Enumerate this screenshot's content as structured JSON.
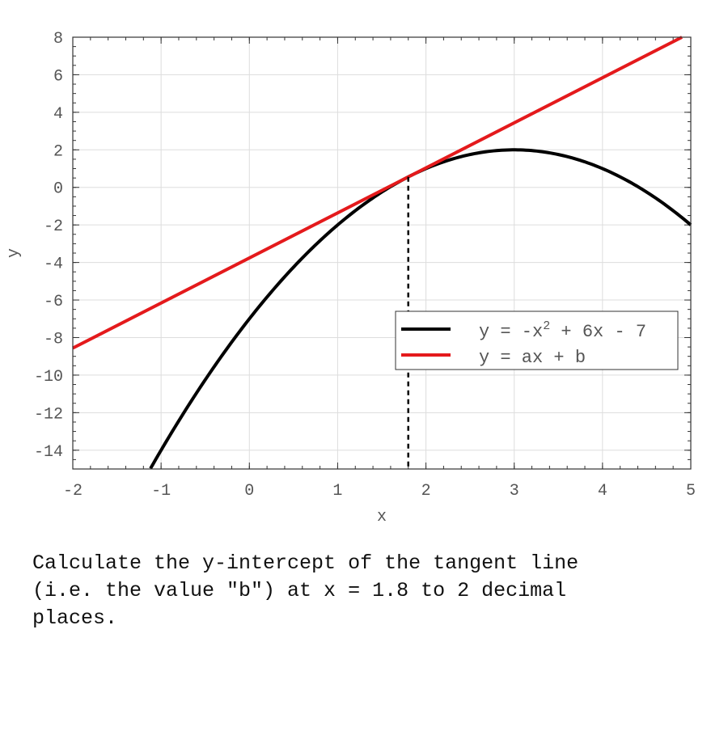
{
  "chart_data": {
    "type": "line",
    "xlabel": "x",
    "ylabel": "y",
    "xlim": [
      -2,
      5
    ],
    "ylim": [
      -15,
      8
    ],
    "xticks": [
      -2,
      -1,
      0,
      1,
      2,
      3,
      4,
      5
    ],
    "yticks": [
      8,
      6,
      4,
      2,
      0,
      -2,
      -4,
      -6,
      -8,
      -10,
      -12,
      -14
    ],
    "grid": true,
    "legend_position": "right-middle",
    "series": [
      {
        "name": "y = -x^2 + 6x - 7",
        "legend_main": "y = -x",
        "legend_sup": "2",
        "legend_tail": " + 6x - 7",
        "function": "-x^2 + 6x - 7",
        "color": "#000000",
        "x_start": -1.12,
        "x_end": 5
      },
      {
        "name": "y = ax + b",
        "legend_main": "y = ax + b",
        "color": "#e41a1c",
        "a": 2.4,
        "b": -3.76,
        "x_start": -2,
        "x_end": 4.9
      }
    ],
    "marker_line": {
      "x": 1.8,
      "style": "dashed",
      "color": "#000000",
      "y_top": 0.56
    }
  },
  "question": {
    "text": "Calculate the y-intercept of the tangent line\n(i.e. the value \"b\") at x = 1.8 to 2 decimal\nplaces."
  }
}
